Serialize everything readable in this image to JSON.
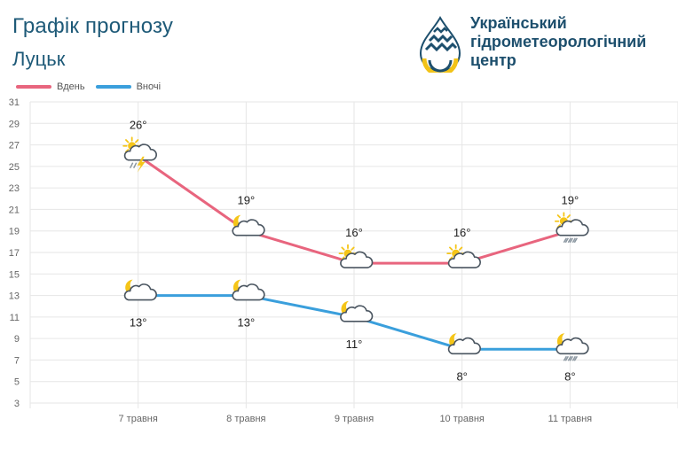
{
  "header": {
    "title": "Графік прогнозу",
    "city": "Луцьк"
  },
  "logo": {
    "line1": "Український",
    "line2": "гідрометеорологічний",
    "line3": "центр"
  },
  "chart_data": {
    "type": "line",
    "categories": [
      "7 травня",
      "8 травня",
      "9 травня",
      "10 травня",
      "11 травня"
    ],
    "series": [
      {
        "name": "Вдень",
        "color": "#e8657e",
        "values": [
          26,
          19,
          16,
          16,
          19
        ],
        "labels": [
          "26°",
          "19°",
          "16°",
          "16°",
          "19°"
        ],
        "icons": [
          "sun-cloud-thunder-icon",
          "moon-cloud-icon",
          "sun-cloud-icon",
          "sun-cloud-icon",
          "sun-cloud-rain-icon"
        ]
      },
      {
        "name": "Вночі",
        "color": "#3a9fdc",
        "values": [
          13,
          13,
          11,
          8,
          8
        ],
        "labels": [
          "13°",
          "13°",
          "11°",
          "8°",
          "8°"
        ],
        "icons": [
          "moon-cloud-icon",
          "moon-cloud-icon",
          "moon-cloud-icon",
          "moon-cloud-icon",
          "moon-cloud-rain-icon"
        ]
      }
    ],
    "yticks": [
      31,
      29,
      27,
      25,
      23,
      21,
      19,
      17,
      15,
      13,
      11,
      9,
      7,
      5,
      3
    ],
    "ylim": [
      3,
      31
    ],
    "grid": true,
    "legend": "top-left"
  }
}
